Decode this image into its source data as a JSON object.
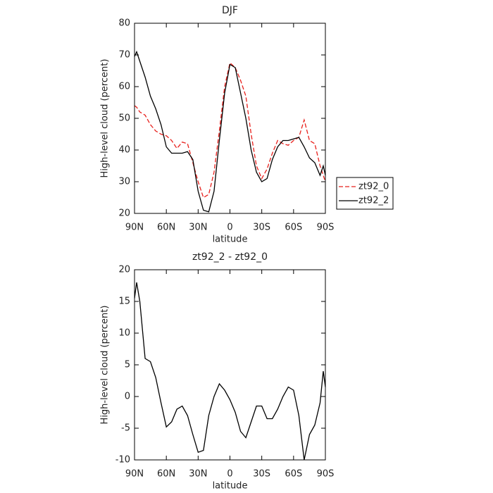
{
  "chart_data": [
    {
      "type": "line",
      "title": "DJF",
      "xlabel": "latitude",
      "ylabel": "High-level cloud (percent)",
      "x": [
        90,
        88,
        85,
        80,
        75,
        70,
        65,
        60,
        55,
        50,
        45,
        40,
        35,
        30,
        25,
        20,
        15,
        10,
        5,
        0,
        -5,
        -10,
        -15,
        -20,
        -25,
        -30,
        -35,
        -40,
        -45,
        -50,
        -55,
        -60,
        -65,
        -70,
        -75,
        -80,
        -85,
        -88,
        -90
      ],
      "xlim": [
        90,
        -90
      ],
      "xticks": [
        {
          "value": 90,
          "label": "90N"
        },
        {
          "value": 60,
          "label": "60N"
        },
        {
          "value": 30,
          "label": "30N"
        },
        0,
        {
          "value": -30,
          "label": "30S"
        },
        {
          "value": -60,
          "label": "60S"
        },
        {
          "value": -90,
          "label": "90S"
        }
      ],
      "ylim": [
        20,
        80
      ],
      "yticks": [
        20,
        30,
        40,
        50,
        60,
        70,
        80
      ],
      "legend": "right",
      "series": [
        {
          "name": "zt92_0",
          "color": "#e8201c",
          "dashed": true,
          "values": [
            54,
            53.5,
            52,
            51,
            48,
            46,
            45,
            44.5,
            43,
            40.5,
            42.5,
            42,
            36,
            30,
            25,
            26,
            33,
            46,
            60,
            67.5,
            66,
            62,
            57,
            45,
            35,
            31,
            34,
            39,
            43,
            42,
            41.5,
            43,
            44,
            49.5,
            43,
            42,
            35,
            32,
            30
          ]
        },
        {
          "name": "zt92_2",
          "color": "#000000",
          "dashed": false,
          "values": [
            69.5,
            71,
            68,
            63,
            57,
            53,
            48,
            41,
            39,
            39,
            39,
            39.5,
            37,
            27,
            21,
            20.5,
            27,
            43,
            58,
            67,
            66,
            58,
            50,
            40,
            33,
            30,
            31,
            37,
            41,
            43,
            43,
            43.5,
            44,
            41,
            37.5,
            36,
            32,
            35,
            32
          ]
        }
      ]
    },
    {
      "type": "line",
      "title": "zt92_2 - zt92_0",
      "xlabel": "latitude",
      "ylabel": "High-level cloud (percent)",
      "x": [
        90,
        88,
        85,
        80,
        75,
        70,
        65,
        60,
        55,
        50,
        45,
        40,
        35,
        30,
        25,
        20,
        15,
        10,
        5,
        0,
        -5,
        -10,
        -15,
        -20,
        -25,
        -30,
        -35,
        -40,
        -45,
        -50,
        -55,
        -60,
        -65,
        -70,
        -75,
        -80,
        -85,
        -88,
        -90
      ],
      "xlim": [
        90,
        -90
      ],
      "xticks": [
        {
          "value": 90,
          "label": "90N"
        },
        {
          "value": 60,
          "label": "60N"
        },
        {
          "value": 30,
          "label": "30N"
        },
        0,
        {
          "value": -30,
          "label": "30S"
        },
        {
          "value": -60,
          "label": "60S"
        },
        {
          "value": -90,
          "label": "90S"
        }
      ],
      "ylim": [
        -10,
        20
      ],
      "yticks": [
        -10,
        -5,
        0,
        5,
        10,
        15,
        20
      ],
      "series": [
        {
          "color": "#000000",
          "dashed": false,
          "values": [
            15.5,
            18,
            15,
            6,
            5.5,
            3,
            -1,
            -4.8,
            -4,
            -2,
            -1.5,
            -3,
            -6,
            -8.8,
            -8.5,
            -3,
            0,
            2,
            1,
            -0.5,
            -2.5,
            -5.5,
            -6.5,
            -4,
            -1.5,
            -1.5,
            -3.5,
            -3.5,
            -2,
            0,
            1.5,
            1,
            -3,
            -10,
            -6,
            -4.5,
            -1,
            4,
            1.5
          ]
        }
      ]
    }
  ]
}
